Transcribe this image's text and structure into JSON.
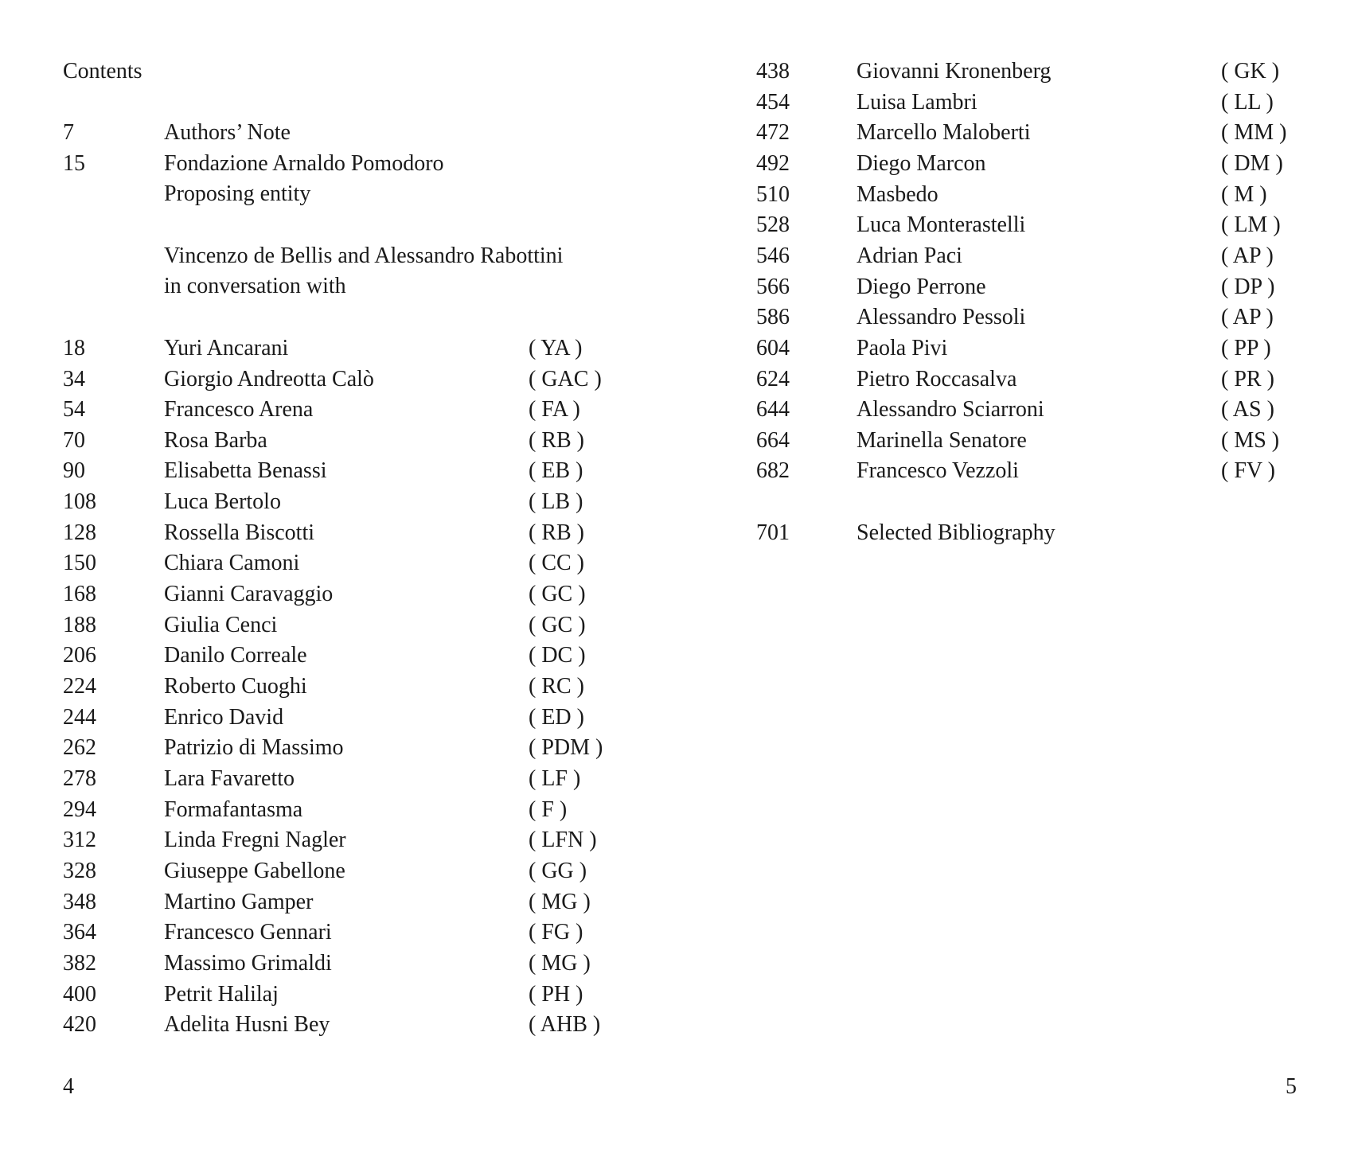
{
  "heading": "Contents",
  "front_matter": [
    {
      "page": "7",
      "title": "Authors’ Note"
    },
    {
      "page": "15",
      "title": "Fondazione Arnaldo Pomodoro",
      "subtitle": "Proposing entity"
    }
  ],
  "conversation_intro": [
    "Vincenzo de Bellis and Alessandro Rabottini",
    "in conversation with"
  ],
  "left_entries": [
    {
      "page": "18",
      "name": "Yuri Ancarani",
      "abbr": "( YA )"
    },
    {
      "page": "34",
      "name": "Giorgio Andreotta Calò",
      "abbr": "( GAC )"
    },
    {
      "page": "54",
      "name": "Francesco Arena",
      "abbr": "( FA )"
    },
    {
      "page": "70",
      "name": "Rosa Barba",
      "abbr": "( RB )"
    },
    {
      "page": "90",
      "name": "Elisabetta Benassi",
      "abbr": "( EB )"
    },
    {
      "page": "108",
      "name": "Luca Bertolo",
      "abbr": "( LB )"
    },
    {
      "page": "128",
      "name": "Rossella Biscotti",
      "abbr": "( RB )"
    },
    {
      "page": "150",
      "name": "Chiara Camoni",
      "abbr": "( CC )"
    },
    {
      "page": "168",
      "name": "Gianni Caravaggio",
      "abbr": "( GC )"
    },
    {
      "page": "188",
      "name": "Giulia Cenci",
      "abbr": "( GC )"
    },
    {
      "page": "206",
      "name": "Danilo Correale",
      "abbr": "( DC )"
    },
    {
      "page": "224",
      "name": "Roberto Cuoghi",
      "abbr": "( RC )"
    },
    {
      "page": "244",
      "name": "Enrico David",
      "abbr": "( ED )"
    },
    {
      "page": "262",
      "name": "Patrizio di Massimo",
      "abbr": "( PDM )"
    },
    {
      "page": "278",
      "name": "Lara Favaretto",
      "abbr": "( LF )"
    },
    {
      "page": "294",
      "name": "Formafantasma",
      "abbr": "( F )"
    },
    {
      "page": "312",
      "name": "Linda Fregni Nagler",
      "abbr": "( LFN )"
    },
    {
      "page": "328",
      "name": "Giuseppe Gabellone",
      "abbr": "( GG )"
    },
    {
      "page": "348",
      "name": "Martino Gamper",
      "abbr": "( MG )"
    },
    {
      "page": "364",
      "name": "Francesco Gennari",
      "abbr": "( FG )"
    },
    {
      "page": "382",
      "name": "Massimo Grimaldi",
      "abbr": "( MG )"
    },
    {
      "page": "400",
      "name": "Petrit Halilaj",
      "abbr": "( PH )"
    },
    {
      "page": "420",
      "name": "Adelita Husni Bey",
      "abbr": "( AHB )"
    }
  ],
  "right_entries": [
    {
      "page": "438",
      "name": "Giovanni Kronenberg",
      "abbr": "( GK )"
    },
    {
      "page": "454",
      "name": "Luisa Lambri",
      "abbr": "( LL )"
    },
    {
      "page": "472",
      "name": "Marcello Maloberti",
      "abbr": "( MM )"
    },
    {
      "page": "492",
      "name": "Diego Marcon",
      "abbr": "( DM )"
    },
    {
      "page": "510",
      "name": "Masbedo",
      "abbr": "( M )"
    },
    {
      "page": "528",
      "name": "Luca Monterastelli",
      "abbr": "( LM )"
    },
    {
      "page": "546",
      "name": "Adrian Paci",
      "abbr": "( AP )"
    },
    {
      "page": "566",
      "name": "Diego Perrone",
      "abbr": "( DP )"
    },
    {
      "page": "586",
      "name": "Alessandro Pessoli",
      "abbr": "( AP )"
    },
    {
      "page": "604",
      "name": "Paola Pivi",
      "abbr": "( PP )"
    },
    {
      "page": "624",
      "name": "Pietro Roccasalva",
      "abbr": "( PR )"
    },
    {
      "page": "644",
      "name": "Alessandro Sciarroni",
      "abbr": "( AS )"
    },
    {
      "page": "664",
      "name": "Marinella Senatore",
      "abbr": "( MS )"
    },
    {
      "page": "682",
      "name": "Francesco Vezzoli",
      "abbr": "( FV )"
    }
  ],
  "bibliography": {
    "page": "701",
    "title": "Selected Bibliography"
  },
  "folios": {
    "left": "4",
    "right": "5"
  }
}
